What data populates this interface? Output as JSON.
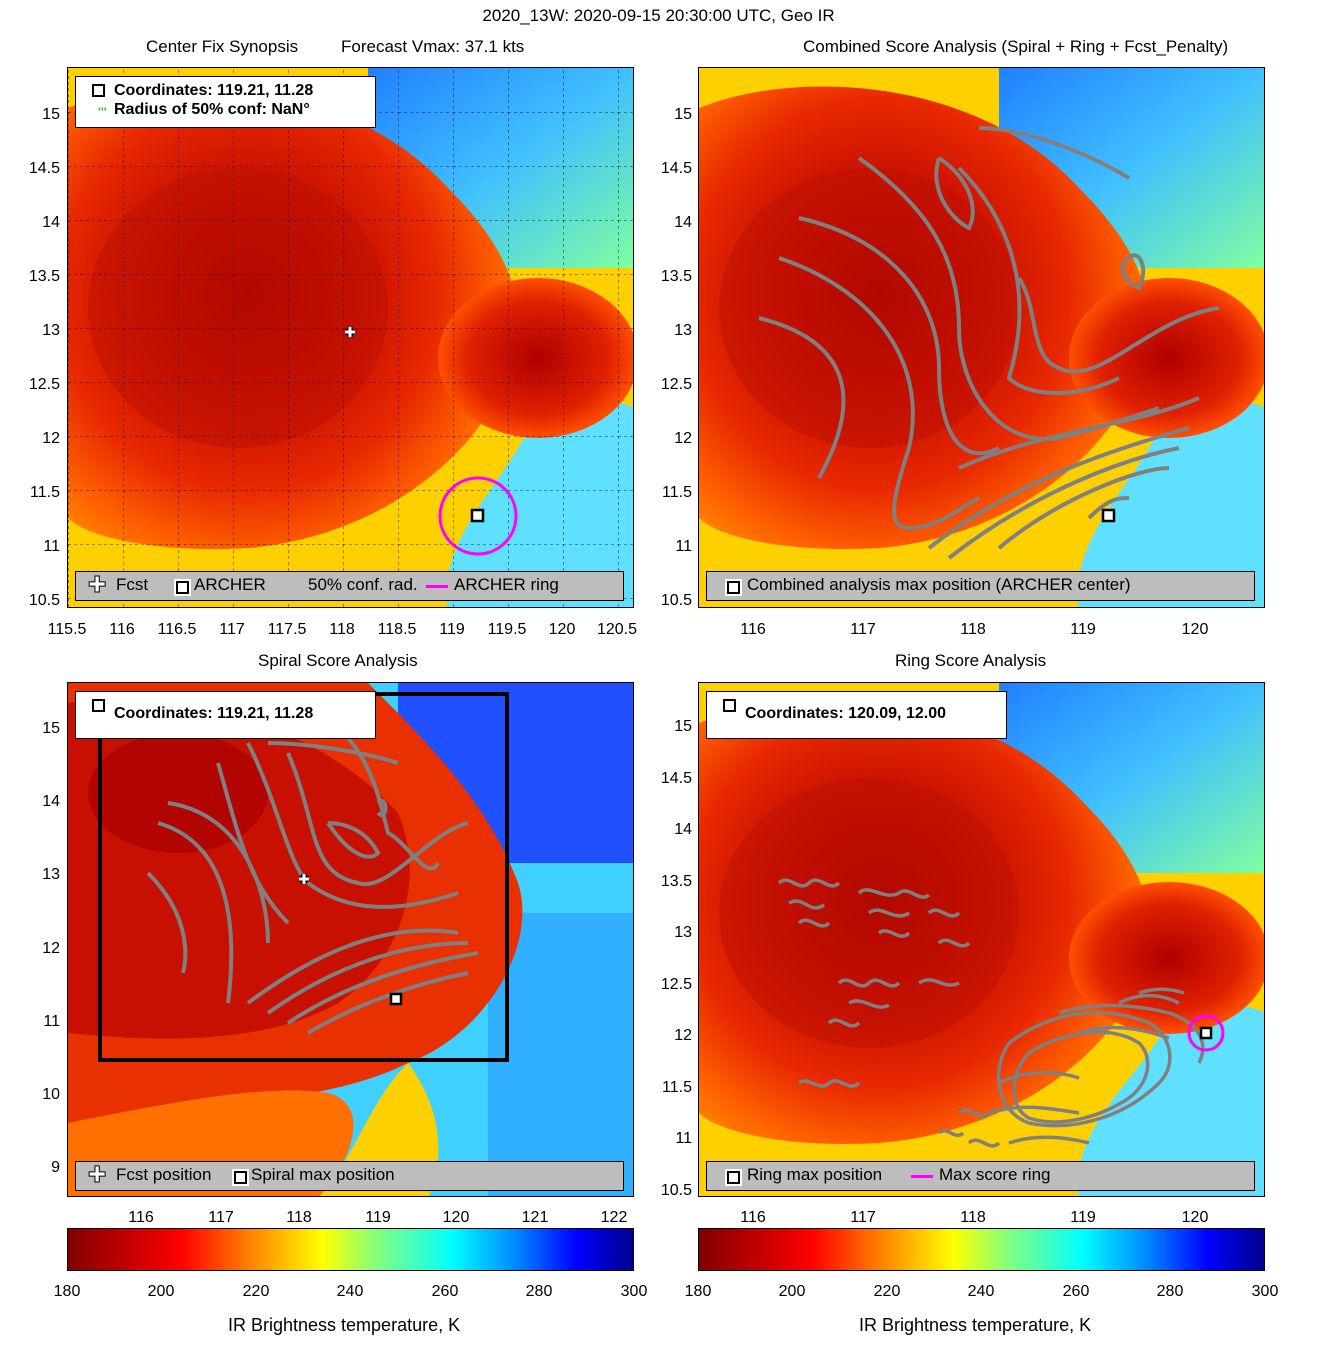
{
  "figure": {
    "suptitle": "2020_13W: 2020-09-15 20:30:00 UTC, Geo IR"
  },
  "panels": {
    "tl": {
      "title_left": "Center Fix Synopsis",
      "title_right": "Forecast Vmax: 37.1 kts",
      "info_lines": [
        "Coordinates: 119.21, 11.28",
        "Radius of 50% conf: NaN°"
      ],
      "legend": [
        "Fcst",
        "ARCHER",
        "50% conf. rad.",
        "ARCHER ring"
      ],
      "xticks": [
        "115.5",
        "116",
        "116.5",
        "117",
        "117.5",
        "118",
        "118.5",
        "119",
        "119.5",
        "120",
        "120.5"
      ],
      "yticks": [
        "15",
        "14.5",
        "14",
        "13.5",
        "13",
        "12.5",
        "12",
        "11.5",
        "11",
        "10.5"
      ]
    },
    "tr": {
      "title": "Combined Score Analysis (Spiral + Ring + Fcst_Penalty)",
      "legend": [
        "Combined analysis max position (ARCHER center)"
      ],
      "xticks": [
        "116",
        "117",
        "118",
        "119",
        "120"
      ],
      "yticks": [
        "15",
        "14.5",
        "14",
        "13.5",
        "13",
        "12.5",
        "12",
        "11.5",
        "11",
        "10.5"
      ]
    },
    "bl": {
      "title": "Spiral Score Analysis",
      "info_lines": [
        "Coordinates: 119.21, 11.28"
      ],
      "legend": [
        "Fcst position",
        "Spiral max position"
      ],
      "xticks": [
        "116",
        "117",
        "118",
        "119",
        "120",
        "121",
        "122"
      ],
      "yticks": [
        "15",
        "14",
        "13",
        "12",
        "11",
        "10",
        "9"
      ]
    },
    "br": {
      "title": "Ring Score Analysis",
      "info_lines": [
        "Coordinates: 120.09, 12.00"
      ],
      "legend": [
        "Ring max position",
        "Max score ring"
      ],
      "xticks": [
        "116",
        "117",
        "118",
        "119",
        "120"
      ],
      "yticks": [
        "15",
        "14.5",
        "14",
        "13.5",
        "13",
        "12.5",
        "12",
        "11.5",
        "11",
        "10.5"
      ]
    }
  },
  "colorbars": {
    "ticks": [
      "180",
      "200",
      "220",
      "240",
      "260",
      "280",
      "300"
    ],
    "label": "IR Brightness temperature, K"
  },
  "chart_data": [
    {
      "type": "heatmap",
      "title": "Center Fix Synopsis",
      "xlim": [
        115.5,
        120.5
      ],
      "ylim": [
        10.5,
        15.4
      ],
      "fcst": [
        118.03,
        12.93
      ],
      "archer": [
        119.21,
        11.28
      ],
      "archer_ring_radius_deg": 0.35,
      "grid": true
    },
    {
      "type": "heatmap",
      "title": "Combined Score Analysis (Spiral + Ring + Fcst_Penalty)",
      "xlim": [
        115.6,
        120.6
      ],
      "ylim": [
        10.5,
        15.4
      ],
      "max_position": [
        119.21,
        11.28
      ]
    },
    {
      "type": "heatmap",
      "title": "Spiral Score Analysis",
      "xlim": [
        115.1,
        122.2
      ],
      "ylim": [
        8.7,
        15.6
      ],
      "fcst": [
        118.03,
        12.93
      ],
      "spiral_max": [
        119.21,
        11.28
      ]
    },
    {
      "type": "heatmap",
      "title": "Ring Score Analysis",
      "xlim": [
        115.6,
        120.6
      ],
      "ylim": [
        10.5,
        15.4
      ],
      "ring_max": [
        120.09,
        12.0
      ]
    }
  ],
  "colors": {
    "ring": "#ff00ff",
    "contour": "#808080"
  }
}
